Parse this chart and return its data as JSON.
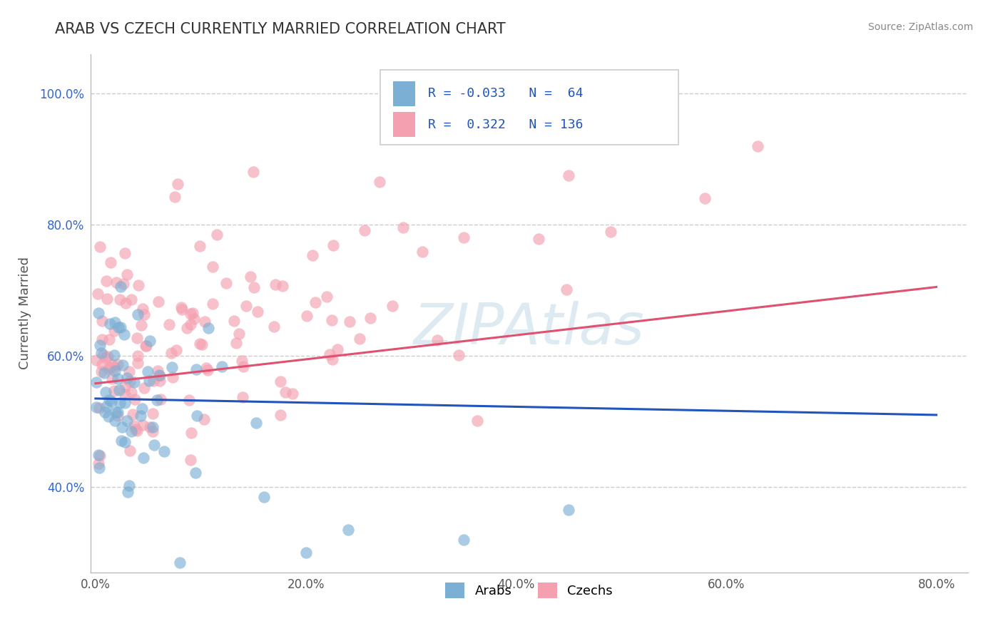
{
  "title": "ARAB VS CZECH CURRENTLY MARRIED CORRELATION CHART",
  "source": "Source: ZipAtlas.com",
  "ylabel_label": "Currently Married",
  "x_tick_labels": [
    "0.0%",
    "20.0%",
    "40.0%",
    "60.0%",
    "80.0%"
  ],
  "x_tick_vals": [
    0.0,
    0.2,
    0.4,
    0.6,
    0.8
  ],
  "y_tick_labels": [
    "40.0%",
    "60.0%",
    "80.0%",
    "100.0%"
  ],
  "y_tick_vals": [
    0.4,
    0.6,
    0.8,
    1.0
  ],
  "xlim": [
    -0.005,
    0.83
  ],
  "ylim": [
    0.27,
    1.06
  ],
  "arab_R": -0.033,
  "arab_N": 64,
  "czech_R": 0.322,
  "czech_N": 136,
  "arab_color": "#7BAFD4",
  "czech_color": "#F4A0B0",
  "arab_line_color": "#2255BB",
  "czech_line_color": "#E05070",
  "watermark": "ZIPAtlas",
  "watermark_color": "#AACCDD",
  "background_color": "#FFFFFF",
  "grid_color": "#CCCCCC",
  "title_color": "#333333",
  "title_fontsize": 15,
  "legend_label_arab": "Arabs",
  "legend_label_czech": "Czechs",
  "arab_line_x0": 0.0,
  "arab_line_x1": 0.8,
  "arab_line_y0": 0.535,
  "arab_line_y1": 0.51,
  "czech_line_x0": 0.0,
  "czech_line_x1": 0.8,
  "czech_line_y0": 0.558,
  "czech_line_y1": 0.705
}
